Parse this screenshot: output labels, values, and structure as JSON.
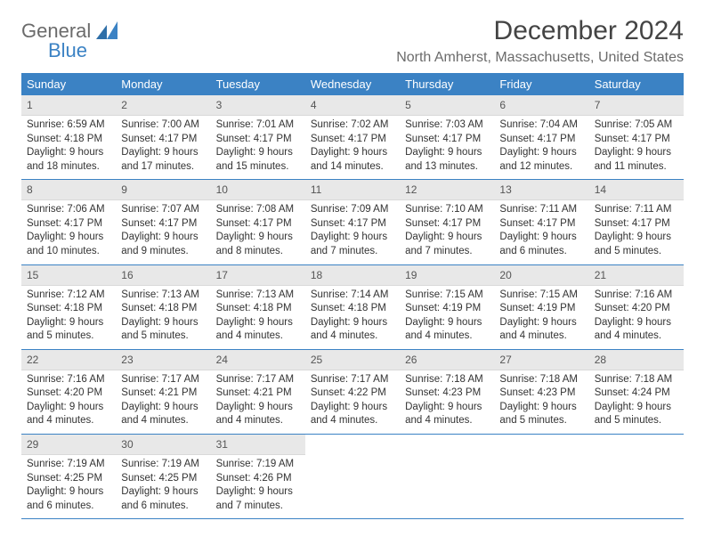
{
  "logo": {
    "word1": "General",
    "word2": "Blue"
  },
  "title": "December 2024",
  "location": "North Amherst, Massachusetts, United States",
  "colors": {
    "header_bg": "#3b82c4",
    "header_text": "#ffffff",
    "daynum_bg": "#e8e8e8",
    "rule": "#3b82c4",
    "text": "#333333",
    "muted": "#6b6b6b"
  },
  "typography": {
    "title_fontsize": 30,
    "subtitle_fontsize": 16,
    "dow_fontsize": 13,
    "body_fontsize": 11.5
  },
  "days_of_week": [
    "Sunday",
    "Monday",
    "Tuesday",
    "Wednesday",
    "Thursday",
    "Friday",
    "Saturday"
  ],
  "weeks": [
    [
      {
        "n": "1",
        "sunrise": "Sunrise: 6:59 AM",
        "sunset": "Sunset: 4:18 PM",
        "daylight": "Daylight: 9 hours and 18 minutes."
      },
      {
        "n": "2",
        "sunrise": "Sunrise: 7:00 AM",
        "sunset": "Sunset: 4:17 PM",
        "daylight": "Daylight: 9 hours and 17 minutes."
      },
      {
        "n": "3",
        "sunrise": "Sunrise: 7:01 AM",
        "sunset": "Sunset: 4:17 PM",
        "daylight": "Daylight: 9 hours and 15 minutes."
      },
      {
        "n": "4",
        "sunrise": "Sunrise: 7:02 AM",
        "sunset": "Sunset: 4:17 PM",
        "daylight": "Daylight: 9 hours and 14 minutes."
      },
      {
        "n": "5",
        "sunrise": "Sunrise: 7:03 AM",
        "sunset": "Sunset: 4:17 PM",
        "daylight": "Daylight: 9 hours and 13 minutes."
      },
      {
        "n": "6",
        "sunrise": "Sunrise: 7:04 AM",
        "sunset": "Sunset: 4:17 PM",
        "daylight": "Daylight: 9 hours and 12 minutes."
      },
      {
        "n": "7",
        "sunrise": "Sunrise: 7:05 AM",
        "sunset": "Sunset: 4:17 PM",
        "daylight": "Daylight: 9 hours and 11 minutes."
      }
    ],
    [
      {
        "n": "8",
        "sunrise": "Sunrise: 7:06 AM",
        "sunset": "Sunset: 4:17 PM",
        "daylight": "Daylight: 9 hours and 10 minutes."
      },
      {
        "n": "9",
        "sunrise": "Sunrise: 7:07 AM",
        "sunset": "Sunset: 4:17 PM",
        "daylight": "Daylight: 9 hours and 9 minutes."
      },
      {
        "n": "10",
        "sunrise": "Sunrise: 7:08 AM",
        "sunset": "Sunset: 4:17 PM",
        "daylight": "Daylight: 9 hours and 8 minutes."
      },
      {
        "n": "11",
        "sunrise": "Sunrise: 7:09 AM",
        "sunset": "Sunset: 4:17 PM",
        "daylight": "Daylight: 9 hours and 7 minutes."
      },
      {
        "n": "12",
        "sunrise": "Sunrise: 7:10 AM",
        "sunset": "Sunset: 4:17 PM",
        "daylight": "Daylight: 9 hours and 7 minutes."
      },
      {
        "n": "13",
        "sunrise": "Sunrise: 7:11 AM",
        "sunset": "Sunset: 4:17 PM",
        "daylight": "Daylight: 9 hours and 6 minutes."
      },
      {
        "n": "14",
        "sunrise": "Sunrise: 7:11 AM",
        "sunset": "Sunset: 4:17 PM",
        "daylight": "Daylight: 9 hours and 5 minutes."
      }
    ],
    [
      {
        "n": "15",
        "sunrise": "Sunrise: 7:12 AM",
        "sunset": "Sunset: 4:18 PM",
        "daylight": "Daylight: 9 hours and 5 minutes."
      },
      {
        "n": "16",
        "sunrise": "Sunrise: 7:13 AM",
        "sunset": "Sunset: 4:18 PM",
        "daylight": "Daylight: 9 hours and 5 minutes."
      },
      {
        "n": "17",
        "sunrise": "Sunrise: 7:13 AM",
        "sunset": "Sunset: 4:18 PM",
        "daylight": "Daylight: 9 hours and 4 minutes."
      },
      {
        "n": "18",
        "sunrise": "Sunrise: 7:14 AM",
        "sunset": "Sunset: 4:18 PM",
        "daylight": "Daylight: 9 hours and 4 minutes."
      },
      {
        "n": "19",
        "sunrise": "Sunrise: 7:15 AM",
        "sunset": "Sunset: 4:19 PM",
        "daylight": "Daylight: 9 hours and 4 minutes."
      },
      {
        "n": "20",
        "sunrise": "Sunrise: 7:15 AM",
        "sunset": "Sunset: 4:19 PM",
        "daylight": "Daylight: 9 hours and 4 minutes."
      },
      {
        "n": "21",
        "sunrise": "Sunrise: 7:16 AM",
        "sunset": "Sunset: 4:20 PM",
        "daylight": "Daylight: 9 hours and 4 minutes."
      }
    ],
    [
      {
        "n": "22",
        "sunrise": "Sunrise: 7:16 AM",
        "sunset": "Sunset: 4:20 PM",
        "daylight": "Daylight: 9 hours and 4 minutes."
      },
      {
        "n": "23",
        "sunrise": "Sunrise: 7:17 AM",
        "sunset": "Sunset: 4:21 PM",
        "daylight": "Daylight: 9 hours and 4 minutes."
      },
      {
        "n": "24",
        "sunrise": "Sunrise: 7:17 AM",
        "sunset": "Sunset: 4:21 PM",
        "daylight": "Daylight: 9 hours and 4 minutes."
      },
      {
        "n": "25",
        "sunrise": "Sunrise: 7:17 AM",
        "sunset": "Sunset: 4:22 PM",
        "daylight": "Daylight: 9 hours and 4 minutes."
      },
      {
        "n": "26",
        "sunrise": "Sunrise: 7:18 AM",
        "sunset": "Sunset: 4:23 PM",
        "daylight": "Daylight: 9 hours and 4 minutes."
      },
      {
        "n": "27",
        "sunrise": "Sunrise: 7:18 AM",
        "sunset": "Sunset: 4:23 PM",
        "daylight": "Daylight: 9 hours and 5 minutes."
      },
      {
        "n": "28",
        "sunrise": "Sunrise: 7:18 AM",
        "sunset": "Sunset: 4:24 PM",
        "daylight": "Daylight: 9 hours and 5 minutes."
      }
    ],
    [
      {
        "n": "29",
        "sunrise": "Sunrise: 7:19 AM",
        "sunset": "Sunset: 4:25 PM",
        "daylight": "Daylight: 9 hours and 6 minutes."
      },
      {
        "n": "30",
        "sunrise": "Sunrise: 7:19 AM",
        "sunset": "Sunset: 4:25 PM",
        "daylight": "Daylight: 9 hours and 6 minutes."
      },
      {
        "n": "31",
        "sunrise": "Sunrise: 7:19 AM",
        "sunset": "Sunset: 4:26 PM",
        "daylight": "Daylight: 9 hours and 7 minutes."
      },
      null,
      null,
      null,
      null
    ]
  ]
}
